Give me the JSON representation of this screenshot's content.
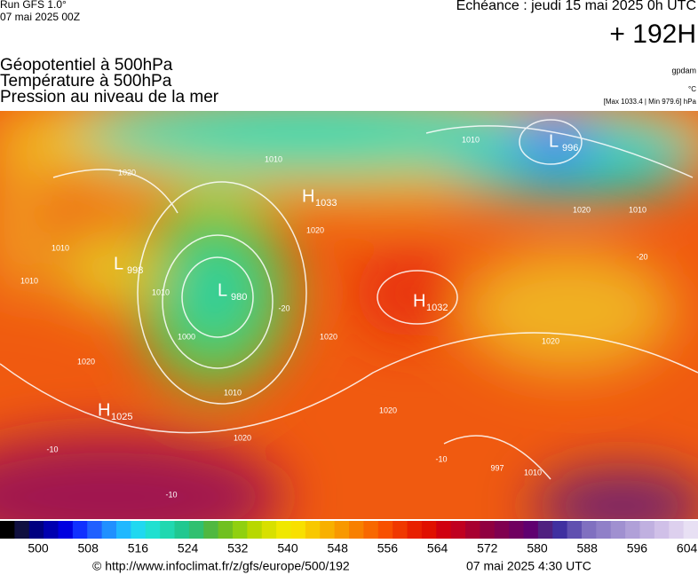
{
  "header": {
    "run": "Run GFS 1.0°",
    "run_date": "07 mai 2025 00Z",
    "echeance": "Echéance : jeudi 15 mai 2025 0h UTC",
    "horizon": "+ 192H"
  },
  "legend": {
    "lines": [
      "Géopotentiel à 500hPa",
      "Température à 500hPa",
      "Pression au niveau de la mer"
    ],
    "units": [
      "gpdam",
      "°C",
      "[Max 1033.4 | Min 979.6] hPa"
    ]
  },
  "systems": [
    {
      "letter": "L",
      "value": "996"
    },
    {
      "letter": "L",
      "value": "998"
    },
    {
      "letter": "L",
      "value": "980"
    },
    {
      "letter": "H",
      "value": "1033"
    },
    {
      "letter": "H",
      "value": "1032"
    },
    {
      "letter": "H",
      "value": "1025"
    }
  ],
  "contour_labels": [
    "1010",
    "1020",
    "1010",
    "-20",
    "1020",
    "1010",
    "1010",
    "1010",
    "1000",
    "1010",
    "1020",
    "1020",
    "-20",
    "1020",
    "1020",
    "997",
    "1010",
    "-10",
    "-10",
    "-10",
    "1020",
    "1010",
    "1020"
  ],
  "colorbar_labels": [
    "500",
    "508",
    "516",
    "524",
    "532",
    "540",
    "548",
    "556",
    "564",
    "572",
    "580",
    "588",
    "596",
    "604"
  ],
  "footer": {
    "url": "© http://www.infoclimat.fr/z/gfs/europe/500/192",
    "time": "07 mai 2025  4:30 UTC"
  }
}
